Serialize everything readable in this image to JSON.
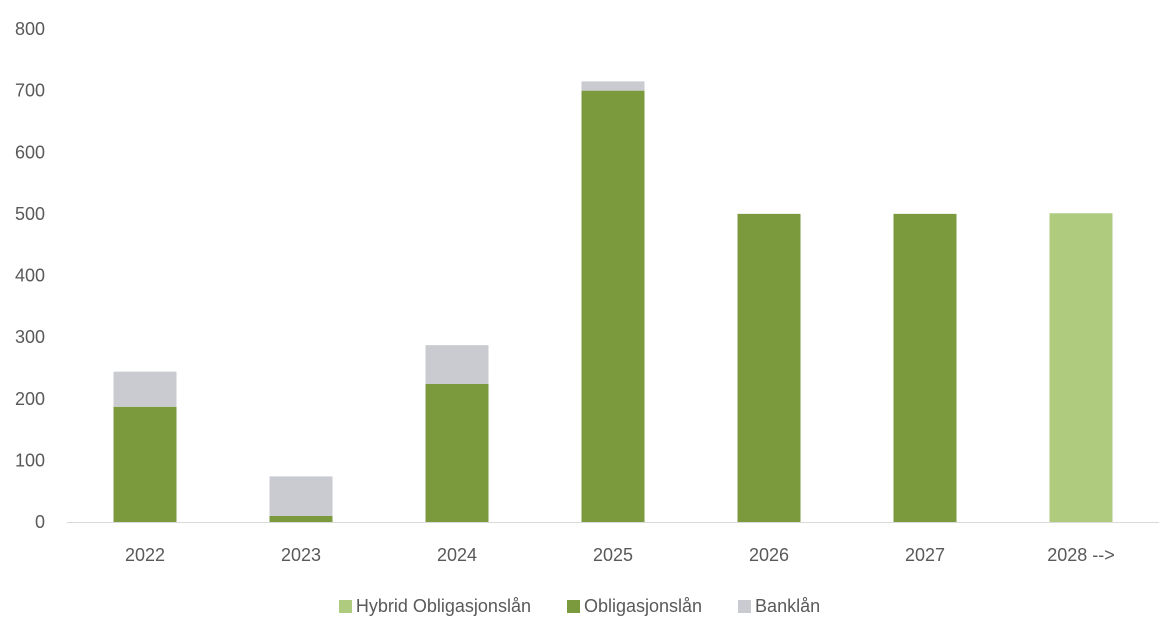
{
  "chart_data": {
    "type": "bar",
    "stacked": true,
    "categories": [
      "2022",
      "2023",
      "2024",
      "2025",
      "2026",
      "2027",
      "2028 -->"
    ],
    "series": [
      {
        "name": "Hybrid Obligasjonslån",
        "color": "#aecb7e",
        "values": [
          0,
          0,
          0,
          0,
          0,
          0,
          501
        ]
      },
      {
        "name": "Obligasjonslån",
        "color": "#7a9a3d",
        "values": [
          187,
          10,
          224,
          700,
          500,
          500,
          0
        ]
      },
      {
        "name": "Banklån",
        "color": "#c9cbd1",
        "values": [
          57,
          64,
          63,
          15,
          0,
          0,
          0
        ]
      }
    ],
    "ylim": [
      0,
      800
    ],
    "yticks": [
      0,
      100,
      200,
      300,
      400,
      500,
      600,
      700,
      800
    ],
    "grid": false,
    "legend_position": "bottom"
  }
}
